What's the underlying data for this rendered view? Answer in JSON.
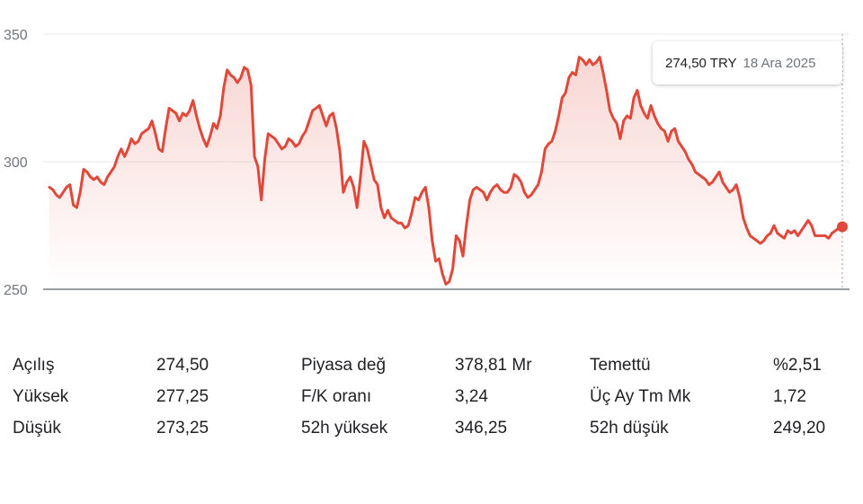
{
  "chart_data": {
    "type": "area",
    "ylim": [
      250,
      350
    ],
    "y_ticks": [
      "350",
      "300",
      "250"
    ],
    "y_tick_values": [
      350,
      300,
      250
    ],
    "series_color": "#e0483a",
    "grid": true,
    "values": [
      290,
      289,
      287,
      286,
      288,
      290,
      291,
      283,
      282,
      288,
      297,
      296,
      294,
      293,
      294,
      292,
      291,
      294,
      296,
      298,
      302,
      305,
      302,
      305,
      309,
      307,
      308,
      311,
      312,
      313,
      316,
      311,
      305,
      304,
      313,
      321,
      320,
      319,
      316,
      319,
      318,
      320,
      324,
      318,
      313,
      309,
      306,
      310,
      315,
      313,
      318,
      329,
      336,
      334,
      333,
      331,
      333,
      337,
      336,
      330,
      302,
      298,
      285,
      301,
      311,
      310,
      309,
      307,
      305,
      306,
      309,
      308,
      306,
      307,
      310,
      312,
      316,
      320,
      321,
      322,
      318,
      314,
      318,
      319,
      313,
      304,
      288,
      292,
      294,
      290,
      282,
      294,
      308,
      305,
      299,
      293,
      291,
      282,
      278,
      281,
      278,
      277,
      276,
      276,
      274,
      275,
      280,
      286,
      285,
      288,
      290,
      282,
      269,
      261,
      262,
      256,
      252,
      253,
      258,
      271,
      269,
      263,
      275,
      285,
      289,
      290,
      289,
      288,
      285,
      288,
      290,
      291,
      289,
      288,
      288,
      290,
      295,
      294,
      292,
      288,
      286,
      287,
      289,
      291,
      296,
      305,
      307,
      308,
      312,
      318,
      325,
      327,
      333,
      335,
      334,
      341,
      340,
      338,
      340,
      338,
      339,
      341,
      335,
      328,
      320,
      317,
      315,
      309,
      316,
      318,
      317,
      325,
      328,
      322,
      319,
      317,
      322,
      318,
      315,
      313,
      312,
      308,
      312,
      313,
      308,
      306,
      304,
      301,
      299,
      296,
      295,
      294,
      293,
      291,
      292,
      294,
      296,
      292,
      290,
      288,
      289,
      291,
      286,
      278,
      274,
      271,
      270,
      269,
      268,
      269,
      271,
      272,
      275,
      272,
      271,
      270,
      273,
      272,
      273,
      271,
      273,
      275,
      277,
      275,
      271,
      271,
      271,
      271,
      270,
      272,
      273,
      274,
      274.5
    ]
  },
  "tooltip": {
    "price": "274,50 TRY",
    "date": "18 Ara 2025"
  },
  "stats": [
    {
      "label": "Açılış",
      "value": "274,50",
      "label2": "Piyasa değ",
      "value2": "378,81 Mr",
      "label3": "Temettü",
      "value3": "%2,51"
    },
    {
      "label": "Yüksek",
      "value": "277,25",
      "label2": "F/K oranı",
      "value2": "3,24",
      "label3": "Üç Ay Tm Mk",
      "value3": "1,72"
    },
    {
      "label": "Düşük",
      "value": "273,25",
      "label2": "52h yüksek",
      "value2": "346,25",
      "label3": "52h düşük",
      "value3": "249,20"
    }
  ]
}
